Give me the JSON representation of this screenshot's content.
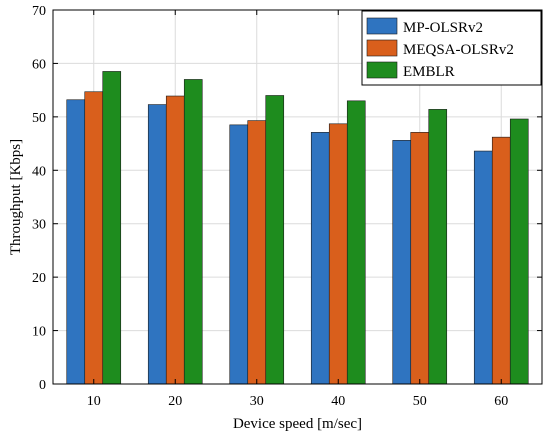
{
  "chart_data": {
    "type": "bar",
    "categories": [
      "10",
      "20",
      "30",
      "40",
      "50",
      "60"
    ],
    "series": [
      {
        "name": "MP-OLSRv2",
        "values": [
          53.2,
          52.3,
          48.5,
          47.1,
          45.6,
          43.6
        ],
        "color": "#2F74C0"
      },
      {
        "name": "MEQSA-OLSRv2",
        "values": [
          54.7,
          53.9,
          49.3,
          48.7,
          47.1,
          46.2
        ],
        "color": "#D95F1C"
      },
      {
        "name": "EMBLR",
        "values": [
          58.5,
          57.0,
          54.0,
          53.0,
          51.4,
          49.6
        ],
        "color": "#1E8C1E"
      }
    ],
    "xlabel": "Device speed [m/sec]",
    "ylabel": "Throughput [Kbps]",
    "ylim": [
      0,
      70
    ],
    "yticks": [
      0,
      10,
      20,
      30,
      40,
      50,
      60,
      70
    ],
    "grid": true,
    "legend_position": "top-right"
  }
}
